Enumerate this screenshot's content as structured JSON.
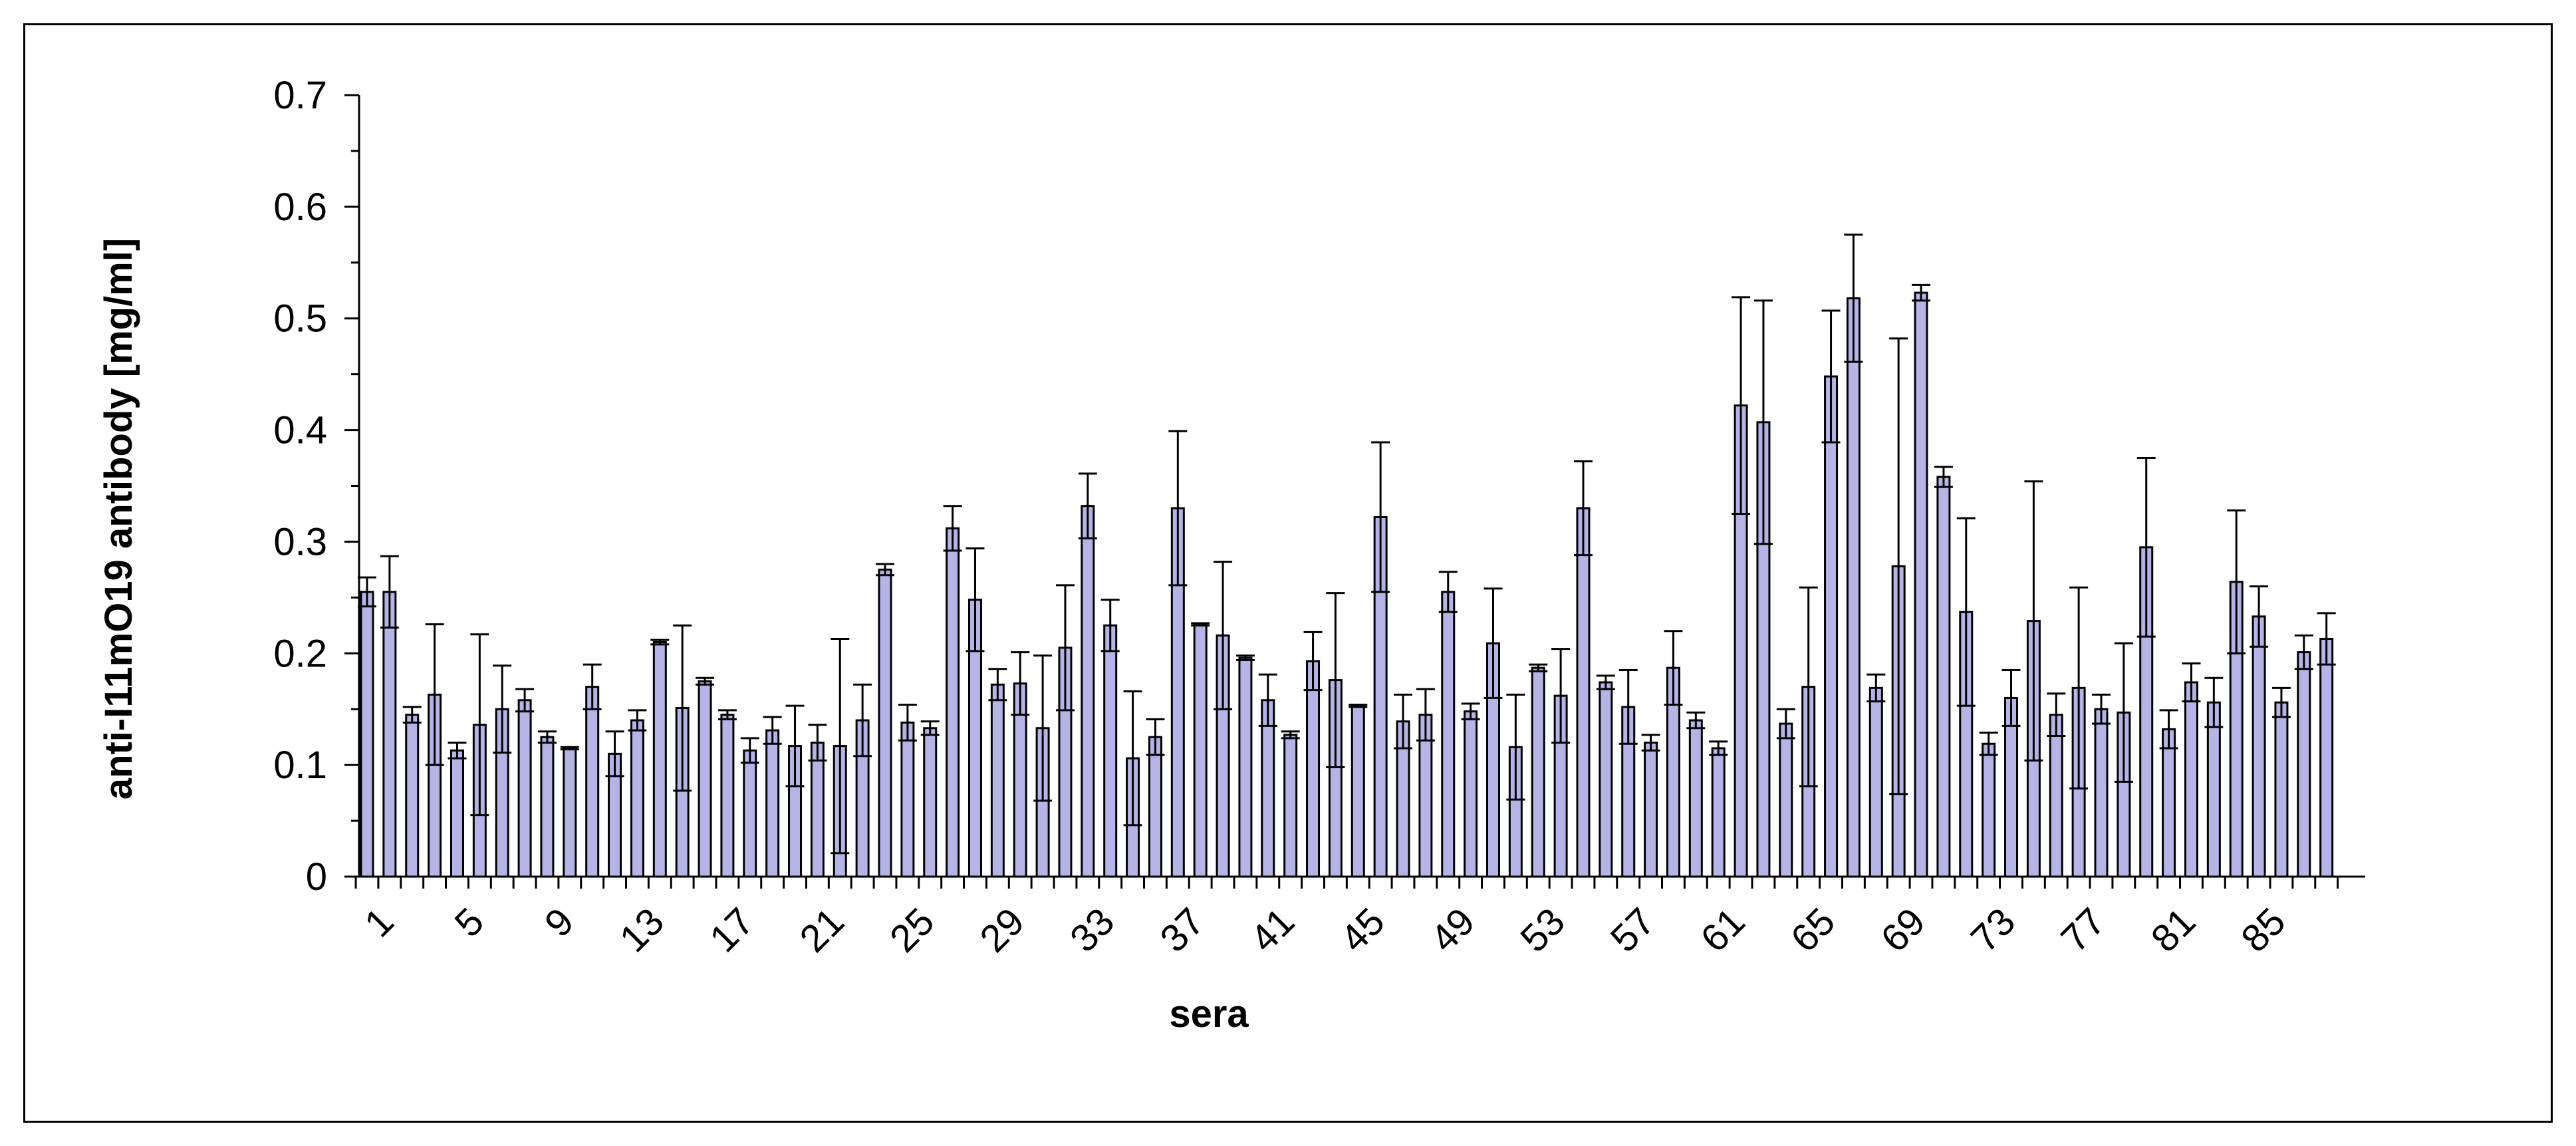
{
  "chart_data": {
    "type": "bar",
    "xlabel": "sera",
    "ylabel": "anti-I11mO19 antibody [mg/ml]",
    "ylim": [
      0,
      0.7
    ],
    "y_ticks": [
      "0",
      "0.1",
      "0.2",
      "0.3",
      "0.4",
      "0.5",
      "0.6",
      "0.7"
    ],
    "y_tick_values": [
      0,
      0.1,
      0.2,
      0.3,
      0.4,
      0.5,
      0.6,
      0.7
    ],
    "x_tick_labels": [
      "1",
      "5",
      "9",
      "13",
      "17",
      "21",
      "25",
      "29",
      "33",
      "37",
      "41",
      "45",
      "49",
      "53",
      "57",
      "61",
      "65",
      "69",
      "73",
      "77",
      "81",
      "85"
    ],
    "x_tick_categories": [
      1,
      5,
      9,
      13,
      17,
      21,
      25,
      29,
      33,
      37,
      41,
      45,
      49,
      53,
      57,
      61,
      65,
      69,
      73,
      77,
      81,
      85
    ],
    "grid": false,
    "legend": "none",
    "colors": {
      "bar_fill": "#b4b4e6",
      "bar_stroke": "#000000",
      "axis": "#000000",
      "error_bar": "#000000"
    },
    "categories": [
      1,
      2,
      3,
      4,
      5,
      6,
      7,
      8,
      9,
      10,
      11,
      12,
      13,
      14,
      15,
      16,
      17,
      18,
      19,
      20,
      21,
      22,
      23,
      24,
      25,
      26,
      27,
      28,
      29,
      30,
      31,
      32,
      33,
      34,
      35,
      36,
      37,
      38,
      39,
      40,
      41,
      42,
      43,
      44,
      45,
      46,
      47,
      48,
      49,
      50,
      51,
      52,
      53,
      54,
      55,
      56,
      57,
      58,
      59,
      60,
      61,
      62,
      63,
      64,
      65,
      66,
      67,
      68,
      69,
      70,
      71,
      72,
      73,
      74,
      75,
      76,
      77,
      78,
      79,
      80,
      81,
      82,
      83,
      84,
      85,
      86,
      87,
      88
    ],
    "values": [
      0.255,
      0.255,
      0.145,
      0.163,
      0.113,
      0.136,
      0.15,
      0.158,
      0.125,
      0.115,
      0.17,
      0.11,
      0.14,
      0.21,
      0.151,
      0.175,
      0.145,
      0.113,
      0.131,
      0.117,
      0.12,
      0.117,
      0.14,
      0.275,
      0.138,
      0.133,
      0.312,
      0.248,
      0.172,
      0.173,
      0.133,
      0.205,
      0.332,
      0.225,
      0.106,
      0.125,
      0.33,
      0.226,
      0.216,
      0.196,
      0.158,
      0.127,
      0.193,
      0.176,
      0.153,
      0.322,
      0.139,
      0.145,
      0.255,
      0.148,
      0.209,
      0.116,
      0.187,
      0.162,
      0.33,
      0.174,
      0.152,
      0.12,
      0.187,
      0.14,
      0.115,
      0.422,
      0.407,
      0.137,
      0.17,
      0.448,
      0.518,
      0.169,
      0.278,
      0.523,
      0.358,
      0.237,
      0.119,
      0.16,
      0.229,
      0.145,
      0.169,
      0.15,
      0.147,
      0.295,
      0.132,
      0.174,
      0.156,
      0.264,
      0.233,
      0.156,
      0.201,
      0.213
    ],
    "errors": [
      0.013,
      0.032,
      0.007,
      0.063,
      0.007,
      0.081,
      0.039,
      0.01,
      0.005,
      0.001,
      0.02,
      0.02,
      0.009,
      0.002,
      0.074,
      0.003,
      0.004,
      0.011,
      0.012,
      0.036,
      0.016,
      0.096,
      0.032,
      0.005,
      0.016,
      0.006,
      0.02,
      0.046,
      0.014,
      0.028,
      0.065,
      0.056,
      0.029,
      0.023,
      0.06,
      0.016,
      0.069,
      0.001,
      0.066,
      0.002,
      0.023,
      0.003,
      0.026,
      0.078,
      0.001,
      0.067,
      0.024,
      0.023,
      0.018,
      0.007,
      0.049,
      0.047,
      0.003,
      0.042,
      0.042,
      0.006,
      0.033,
      0.007,
      0.033,
      0.007,
      0.006,
      0.097,
      0.109,
      0.013,
      0.089,
      0.059,
      0.057,
      0.012,
      0.204,
      0.007,
      0.009,
      0.084,
      0.01,
      0.025,
      0.125,
      0.019,
      0.09,
      0.013,
      0.062,
      0.08,
      0.017,
      0.017,
      0.022,
      0.064,
      0.027,
      0.013,
      0.015,
      0.023
    ]
  }
}
